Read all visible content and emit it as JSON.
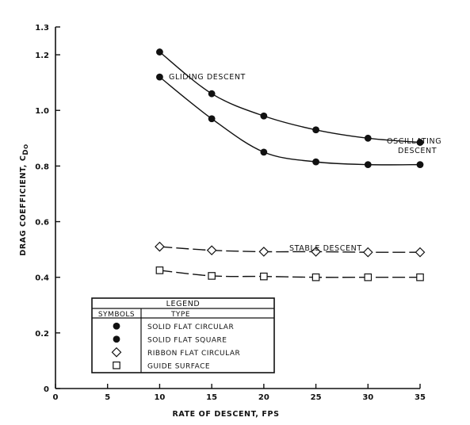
{
  "chart_data": {
    "type": "line",
    "xlabel": "RATE OF DESCENT, FPS",
    "ylabel": "DRAG COEFFICIENT, C",
    "ylabel_sub": "D",
    "ylabel_subsub": "O",
    "xlim": [
      0,
      35
    ],
    "ylim": [
      0,
      1.3
    ],
    "x_ticks": [
      "0",
      "5",
      "10",
      "15",
      "20",
      "25",
      "30",
      "35"
    ],
    "y_ticks": [
      "0",
      "0.2",
      "0.4",
      "0.6",
      "0.8",
      "1.0",
      "1.2",
      "1.3"
    ],
    "grid": false,
    "series": [
      {
        "name": "SOLID FLAT CIRCULAR",
        "marker": "filled-circle",
        "line": "solid",
        "points": [
          [
            10,
            1.12
          ],
          [
            15,
            0.97
          ],
          [
            20,
            0.85
          ],
          [
            25,
            0.815
          ],
          [
            30,
            0.805
          ],
          [
            35,
            0.805
          ]
        ]
      },
      {
        "name": "SOLID FLAT SQUARE",
        "marker": "filled-circle",
        "line": "solid",
        "points": [
          [
            10,
            1.21
          ],
          [
            15,
            1.06
          ],
          [
            20,
            0.98
          ],
          [
            25,
            0.93
          ],
          [
            30,
            0.9
          ],
          [
            35,
            0.885
          ]
        ]
      },
      {
        "name": "RIBBON FLAT CIRCULAR",
        "marker": "open-diamond",
        "line": "dashed",
        "points": [
          [
            10,
            0.51
          ],
          [
            15,
            0.497
          ],
          [
            20,
            0.492
          ],
          [
            25,
            0.492
          ],
          [
            30,
            0.49
          ],
          [
            35,
            0.49
          ]
        ]
      },
      {
        "name": "GUIDE SURFACE",
        "marker": "open-square",
        "line": "dashed",
        "points": [
          [
            10,
            0.425
          ],
          [
            15,
            0.405
          ],
          [
            20,
            0.403
          ],
          [
            25,
            0.4
          ],
          [
            30,
            0.4
          ],
          [
            35,
            0.4
          ]
        ]
      }
    ],
    "annotations": [
      {
        "id": "gliding",
        "text": "GLIDING DESCENT"
      },
      {
        "id": "oscillating-1",
        "text": "OSCILLATING"
      },
      {
        "id": "oscillating-2",
        "text": "DESCENT"
      },
      {
        "id": "stable",
        "text": "STABLE DESCENT"
      }
    ],
    "legend": {
      "title": "LEGEND",
      "col_symbols": "SYMBOLS",
      "col_type": "TYPE",
      "placement": "bottom-left"
    }
  }
}
